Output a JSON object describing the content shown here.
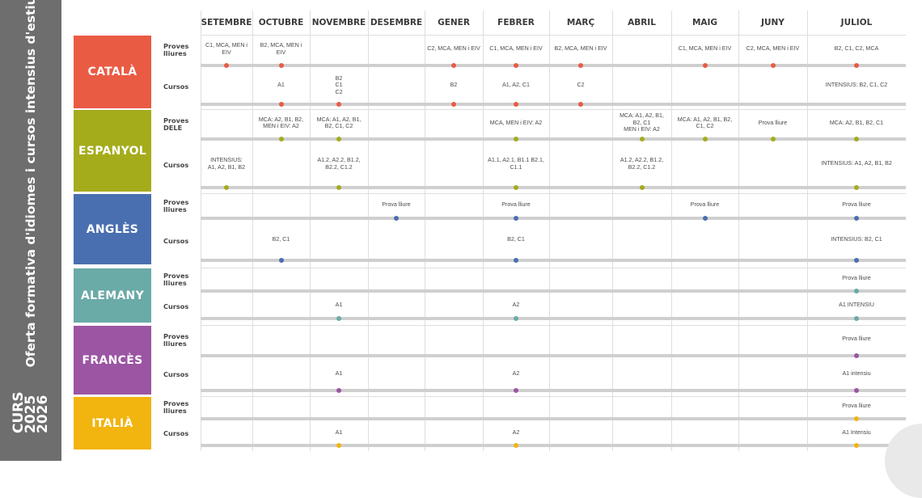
{
  "sidebar": {
    "course_line1": "CURS",
    "course_line2": "2025",
    "course_line3": "2026",
    "title": "Oferta formativa d'idiomes i cursos intensius d'estiu"
  },
  "months": [
    "SETEMBRE",
    "OCTUBRE",
    "NOVEMBRE",
    "DESEMBRE",
    "GENER",
    "FEBRER",
    "MARÇ",
    "ABRIL",
    "MAIG",
    "JUNY",
    "JULIOL"
  ],
  "languages": [
    {
      "name": "CATALÀ",
      "color": "#ea5b44",
      "rows": [
        {
          "type": "Proves lliures",
          "cells": {
            "0": "C1, MCA, MEN i EIV",
            "1": "B2, MCA, MEN i EIV",
            "4": "C2, MCA, MEN i EIV",
            "5": "C1, MCA, MEN i EIV",
            "6": "B2, MCA, MEN i EIV",
            "8": "C1, MCA, MEN i EIV",
            "9": "C2, MCA, MEN i EIV",
            "10": "B2, C1, C2, MCA"
          },
          "dots": [
            0,
            1,
            4,
            5,
            6,
            8,
            9,
            10
          ]
        },
        {
          "type": "Cursos",
          "cells": {
            "1": "A1",
            "2": "B2\nC1\nC2",
            "4": "B2",
            "5": "A1, A2, C1",
            "6": "C2",
            "10": "INTENSIUS: B2, C1, C2"
          },
          "dots": [
            1,
            2,
            4,
            5,
            6
          ]
        }
      ]
    },
    {
      "name": "ESPANYOL",
      "color": "#a4ac1c",
      "rows": [
        {
          "type": "Proves DELE",
          "cells": {
            "1": "MCA: A2, B1, B2,\nMEN i EIV: A2",
            "2": "MCA: A1, A2, B1,\nB2, C1, C2",
            "5": "MCA, MEN i EIV: A2",
            "7": "MCA: A1, A2, B1,\nB2, C1\nMEN i EIV: A2",
            "8": "MCA: A1, A2, B1, B2,\nC1, C2",
            "9": "Prova lliure",
            "10": "MCA: A2, B1, B2, C1"
          },
          "dots": [
            1,
            2,
            5,
            7,
            8,
            9,
            10
          ]
        },
        {
          "type": "Cursos",
          "cells": {
            "0": "INTENSIUS:\nA1, A2, B1, B2",
            "2": "A1.2, A2.2, B1.2,\nB2.2, C1.2",
            "5": "A1.1, A2.1, B1.1 B2.1,\nC1.1",
            "7": "A1.2, A2.2, B1.2,\nB2.2, C1.2",
            "10": "INTENSIUS: A1, A2, B1, B2"
          },
          "dots": [
            0,
            2,
            5,
            7,
            10
          ]
        }
      ]
    },
    {
      "name": "ANGLÈS",
      "color": "#4a6fb0",
      "rows": [
        {
          "type": "Proves lliures",
          "cells": {
            "3": "Prova lliure",
            "5": "Prova lliure",
            "8": "Prova lliure",
            "10": "Prova lliure"
          },
          "dots": [
            3,
            5,
            8,
            10
          ]
        },
        {
          "type": "Cursos",
          "cells": {
            "1": "B2, C1",
            "5": "B2, C1",
            "10": "INTENSIUS: B2, C1"
          },
          "dots": [
            1,
            5,
            10
          ]
        }
      ]
    },
    {
      "name": "ALEMANY",
      "color": "#6aaaa7",
      "rows": [
        {
          "type": "Proves lliures",
          "cells": {
            "10": "Prova lliure"
          },
          "dots": [
            10
          ]
        },
        {
          "type": "Cursos",
          "cells": {
            "2": "A1",
            "5": "A2",
            "10": "A1 INTENSIU"
          },
          "dots": [
            2,
            5,
            10
          ]
        }
      ]
    },
    {
      "name": "FRANCÈS",
      "color": "#9b55a3",
      "rows": [
        {
          "type": "Proves lliures",
          "cells": {
            "10": "Prova lliure"
          },
          "dots": [
            10
          ]
        },
        {
          "type": "Cursos",
          "cells": {
            "2": "A1",
            "5": "A2",
            "10": "A1 intensiu"
          },
          "dots": [
            2,
            5,
            10
          ]
        }
      ]
    },
    {
      "name": "ITALIÀ",
      "color": "#f2b40f",
      "rows": [
        {
          "type": "Proves lliures",
          "cells": {
            "10": "Prova lliure"
          },
          "dots": [
            10
          ]
        },
        {
          "type": "Cursos",
          "cells": {
            "2": "A1",
            "5": "A2",
            "10": "A1 Intensiu"
          },
          "dots": [
            2,
            5,
            10
          ]
        }
      ]
    }
  ]
}
